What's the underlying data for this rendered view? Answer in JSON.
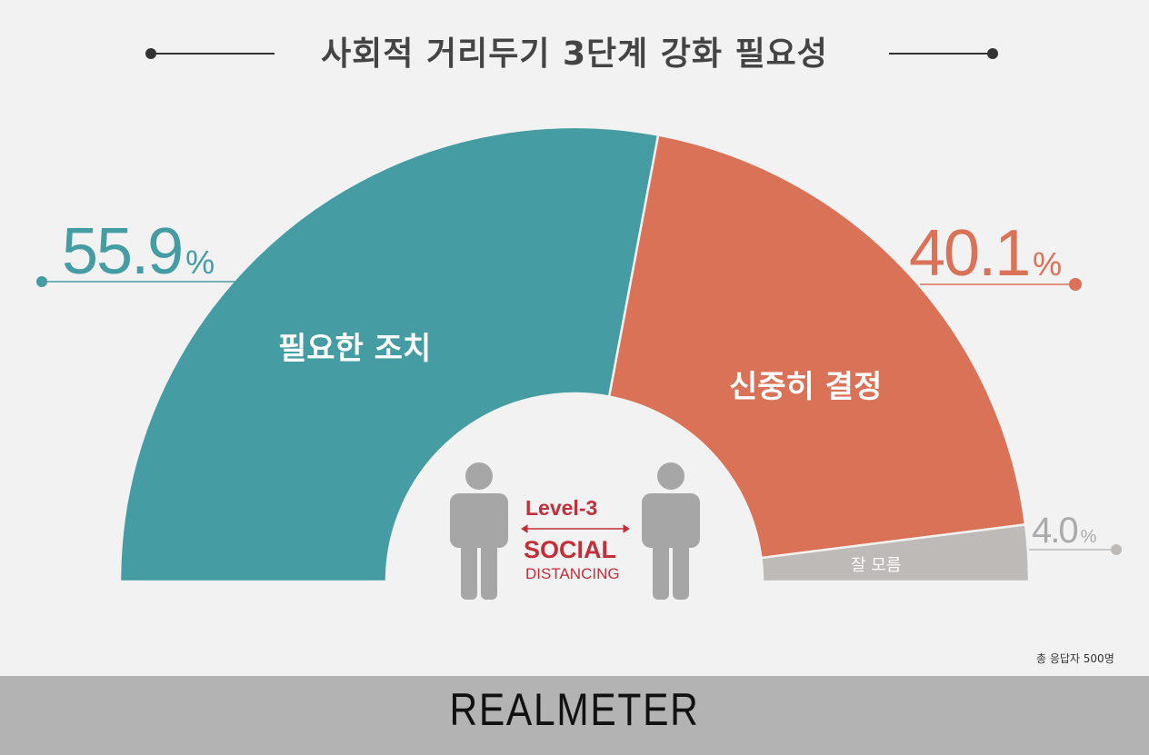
{
  "title": "사회적 거리두기 3단계 강화 필요성",
  "chart_data": {
    "type": "pie",
    "variant": "semicircle-donut",
    "title": "사회적 거리두기 3단계 강화 필요성",
    "categories": [
      "필요한 조치",
      "신중히 결정",
      "잘 모름"
    ],
    "values": [
      55.9,
      40.1,
      4.0
    ],
    "value_labels": [
      "55.9",
      "40.1",
      "4.0"
    ],
    "unit": "%",
    "colors": [
      "#459ca2",
      "#d97257",
      "#bdbab7"
    ]
  },
  "center_graphic": {
    "level": "Level-3",
    "social": "SOCIAL",
    "distancing": "DISTANCING",
    "color": "#c0303a"
  },
  "note": "총 응답자 500명",
  "footer": {
    "logo": "REALMETER"
  }
}
